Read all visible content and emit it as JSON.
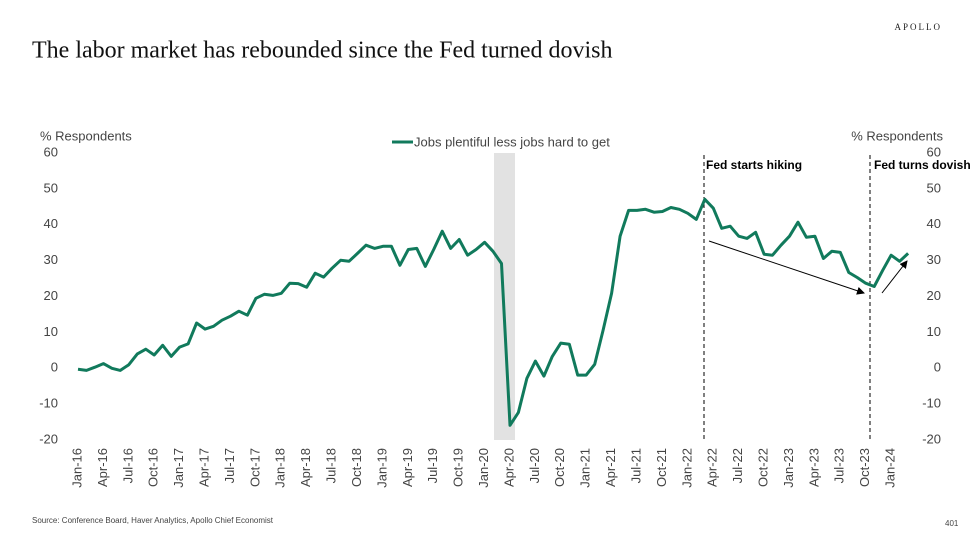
{
  "brand": "APOLLO",
  "chart_data": {
    "type": "line",
    "title": "The labor market has rebounded since the Fed turned dovish",
    "ylabel": "% Respondents",
    "y2label": "% Respondents",
    "categories": [
      "Jan-16",
      null,
      null,
      "Apr-16",
      null,
      null,
      "Jul-16",
      null,
      null,
      "Oct-16",
      null,
      null,
      "Jan-17",
      null,
      null,
      "Apr-17",
      null,
      null,
      "Jul-17",
      null,
      null,
      "Oct-17",
      null,
      null,
      "Jan-18",
      null,
      null,
      "Apr-18",
      null,
      null,
      "Jul-18",
      null,
      null,
      "Oct-18",
      null,
      null,
      "Jan-19",
      null,
      null,
      "Apr-19",
      null,
      null,
      "Jul-19",
      null,
      null,
      "Oct-19",
      null,
      null,
      "Jan-20",
      null,
      null,
      "Apr-20",
      null,
      null,
      "Jul-20",
      null,
      null,
      "Oct-20",
      null,
      null,
      "Jan-21",
      null,
      null,
      "Apr-21",
      null,
      null,
      "Jul-21",
      null,
      null,
      "Oct-21",
      null,
      null,
      "Jan-22",
      null,
      null,
      "Apr-22",
      null,
      null,
      "Jul-22",
      null,
      null,
      "Oct-22",
      null,
      null,
      "Jan-23",
      null,
      null,
      "Apr-23",
      null,
      null,
      "Jul-23",
      null,
      null,
      "Oct-23",
      null,
      null,
      "Jan-24",
      null,
      null
    ],
    "series": [
      {
        "name": "Jobs plentiful less jobs hard to get",
        "color": "#117a5c",
        "values": [
          -0.3,
          -0.6,
          0.3,
          1.3,
          0,
          -0.6,
          1,
          4,
          5.3,
          3.7,
          6.4,
          3.3,
          5.9,
          6.8,
          12.6,
          10.9,
          11.7,
          13.4,
          14.5,
          15.9,
          14.8,
          19.5,
          20.6,
          20.3,
          20.9,
          23.7,
          23.6,
          22.6,
          26.5,
          25.4,
          27.9,
          30.1,
          29.8,
          32,
          34.3,
          33.4,
          34,
          34,
          28.7,
          33.1,
          33.4,
          28.4,
          33.1,
          38.2,
          33.4,
          35.9,
          31.5,
          33.1,
          35.1,
          32.6,
          29.2,
          -15.9,
          -12.3,
          -2.8,
          2,
          -2.2,
          3.3,
          7,
          6.7,
          -1.9,
          -1.9,
          1.1,
          10.6,
          20.9,
          36.8,
          44,
          44,
          44.3,
          43.5,
          43.7,
          44.8,
          44.3,
          43.2,
          41.5,
          47.1,
          44.6,
          39,
          39.6,
          36.8,
          36.2,
          37.9,
          31.8,
          31.5,
          34.3,
          36.8,
          40.7,
          36.5,
          36.8,
          30.6,
          32.6,
          32.3,
          26.7,
          25.3,
          23.7,
          22.8,
          27.3,
          31.5,
          29.8,
          32
        ]
      }
    ],
    "ylim": [
      -20,
      60
    ],
    "yticks": [
      -20,
      -10,
      0,
      10,
      20,
      30,
      40,
      50,
      60
    ],
    "y2lim": [
      -20,
      60
    ],
    "y2ticks": [
      -20,
      -10,
      0,
      10,
      20,
      30,
      40,
      50,
      60
    ],
    "annotations": [
      "Fed starts hiking",
      "Fed turns dovish"
    ],
    "source": "Source: Conference Board, Haver Analytics, Apollo Chief Economist",
    "page_number": "401"
  }
}
